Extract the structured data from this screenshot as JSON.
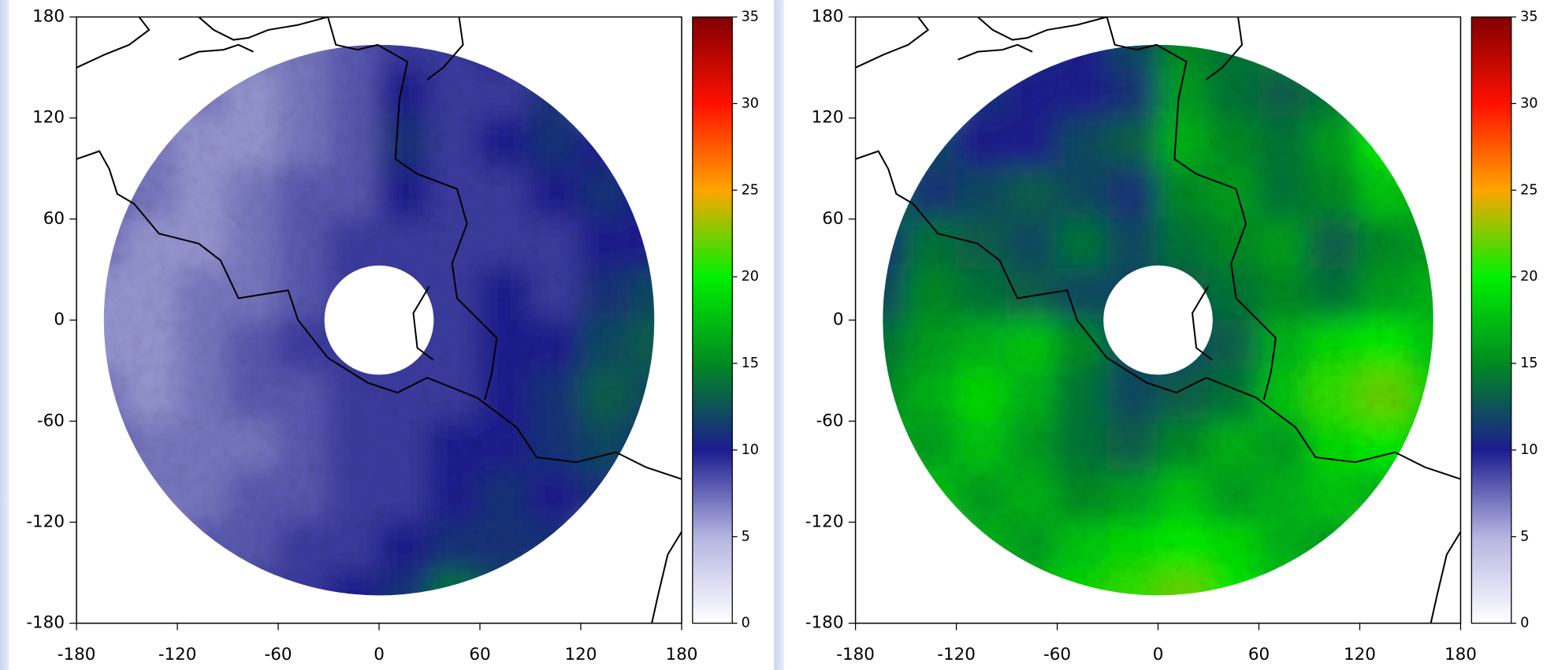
{
  "chart_data": [
    {
      "type": "heatmap",
      "x": [
        -165,
        -135,
        -105,
        -75,
        -45,
        -15,
        15,
        45,
        75,
        105,
        135,
        165
      ],
      "y": [
        165,
        135,
        105,
        75,
        45,
        15,
        -15,
        -45,
        -75,
        -105,
        -135,
        -165
      ],
      "values": [
        [
          null,
          null,
          null,
          7,
          7,
          8,
          9,
          9,
          10,
          null,
          null,
          null
        ],
        [
          null,
          null,
          7,
          6,
          7,
          8,
          10,
          9,
          9,
          11,
          null,
          null
        ],
        [
          null,
          7,
          6,
          6,
          7,
          8,
          11,
          9,
          10,
          11,
          10,
          null
        ],
        [
          8,
          7,
          6,
          7,
          8,
          8,
          10,
          9,
          9,
          10,
          11,
          10
        ],
        [
          7,
          6,
          6,
          7,
          8,
          9,
          9,
          9,
          9,
          9,
          10,
          10
        ],
        [
          6,
          6,
          7,
          7,
          8,
          9,
          9,
          9,
          10,
          9,
          11,
          12
        ],
        [
          6,
          6,
          7,
          8,
          9,
          9,
          9,
          9,
          10,
          10,
          12,
          13
        ],
        [
          7,
          6,
          7,
          8,
          8,
          9,
          9,
          9,
          10,
          11,
          13,
          12
        ],
        [
          8,
          7,
          7,
          7,
          8,
          9,
          9,
          10,
          10,
          11,
          12,
          11
        ],
        [
          null,
          7,
          7,
          8,
          8,
          9,
          9,
          10,
          11,
          10,
          11,
          null
        ],
        [
          null,
          null,
          8,
          8,
          9,
          9,
          10,
          11,
          11,
          11,
          null,
          null
        ],
        [
          null,
          null,
          null,
          9,
          9,
          10,
          11,
          14,
          12,
          null,
          null,
          null
        ]
      ],
      "xlim": [
        -180,
        180
      ],
      "ylim": [
        -180,
        180
      ],
      "xticks": [
        -180,
        -120,
        -60,
        0,
        60,
        120,
        180
      ],
      "yticks": [
        -180,
        -120,
        -60,
        0,
        60,
        120,
        180
      ],
      "colorbar": {
        "lim": [
          0,
          35
        ],
        "ticks": [
          0,
          5,
          10,
          15,
          20,
          25,
          30,
          35
        ],
        "colors": [
          "#ffffff",
          "#b4b4e2",
          "#1c1c8e",
          "#008a20",
          "#00f000",
          "#ffa500",
          "#ff1000",
          "#800000"
        ]
      }
    },
    {
      "type": "heatmap",
      "x": [
        -165,
        -135,
        -105,
        -75,
        -45,
        -15,
        15,
        45,
        75,
        105,
        135,
        165
      ],
      "y": [
        165,
        135,
        105,
        75,
        45,
        15,
        -15,
        -45,
        -75,
        -105,
        -135,
        -165
      ],
      "values": [
        [
          null,
          null,
          null,
          11,
          10,
          12,
          15,
          14,
          15,
          null,
          null,
          null
        ],
        [
          null,
          null,
          11,
          10,
          10,
          11,
          16,
          14,
          13,
          14,
          null,
          null
        ],
        [
          null,
          12,
          10,
          10,
          12,
          13,
          17,
          15,
          14,
          16,
          20,
          null
        ],
        [
          14,
          11,
          12,
          13,
          12,
          11,
          15,
          16,
          14,
          15,
          18,
          17
        ],
        [
          11,
          14,
          13,
          12,
          14,
          12,
          14,
          15,
          16,
          13,
          15,
          16
        ],
        [
          12,
          15,
          14,
          13,
          12,
          12,
          13,
          14,
          15,
          14,
          16,
          17
        ],
        [
          14,
          16,
          17,
          18,
          15,
          12,
          12,
          13,
          17,
          19,
          20,
          18
        ],
        [
          15,
          17,
          19,
          17,
          14,
          12,
          13,
          14,
          18,
          21,
          22,
          19
        ],
        [
          17,
          16,
          18,
          16,
          14,
          13,
          15,
          17,
          16,
          19,
          20,
          18
        ],
        [
          null,
          18,
          16,
          17,
          15,
          16,
          18,
          16,
          17,
          18,
          17,
          null
        ],
        [
          null,
          null,
          17,
          16,
          18,
          19,
          20,
          19,
          17,
          16,
          null,
          null
        ],
        [
          null,
          null,
          null,
          18,
          19,
          21,
          22,
          20,
          18,
          null,
          null,
          null
        ]
      ],
      "xlim": [
        -180,
        180
      ],
      "ylim": [
        -180,
        180
      ],
      "xticks": [
        -180,
        -120,
        -60,
        0,
        60,
        120,
        180
      ],
      "yticks": [
        -180,
        -120,
        -60,
        0,
        60,
        120,
        180
      ],
      "colorbar": {
        "lim": [
          0,
          35
        ],
        "ticks": [
          0,
          5,
          10,
          15,
          20,
          25,
          30,
          35
        ],
        "colors": [
          "#ffffff",
          "#b4b4e2",
          "#1c1c8e",
          "#008a20",
          "#00f000",
          "#ffa500",
          "#ff1000",
          "#800000"
        ]
      }
    }
  ]
}
